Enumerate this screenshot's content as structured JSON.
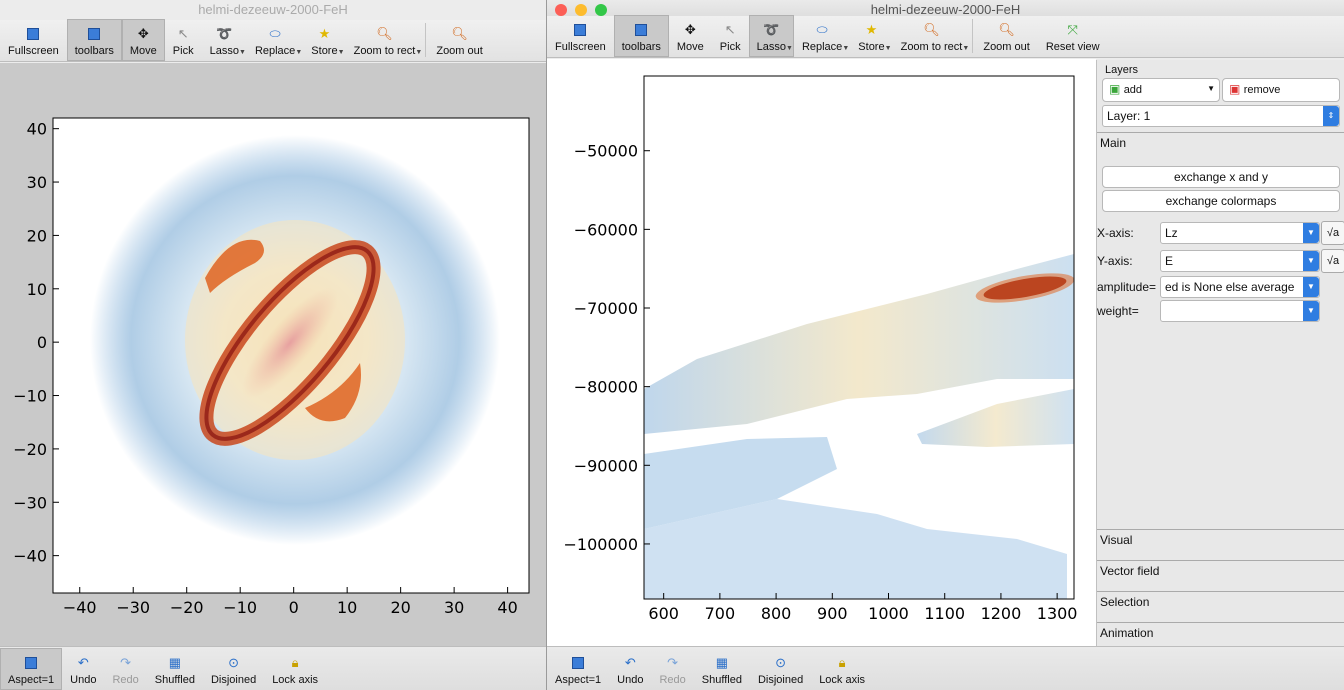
{
  "windows": [
    {
      "title": "helmi-dezeeuw-2000-FeH",
      "toolbar": [
        "Fullscreen",
        "toolbars",
        "Move",
        "Pick",
        "Lasso",
        "Replace",
        "Store",
        "Zoom to rect",
        "Zoom out"
      ],
      "bottom": [
        "Aspect=1",
        "Undo",
        "Redo",
        "Shuffled",
        "Disjoined",
        "Lock axis"
      ]
    },
    {
      "title": "helmi-dezeeuw-2000-FeH",
      "toolbar": [
        "Fullscreen",
        "toolbars",
        "Move",
        "Pick",
        "Lasso",
        "Replace",
        "Store",
        "Zoom to rect",
        "Zoom out",
        "Reset view"
      ],
      "bottom": [
        "Aspect=1",
        "Undo",
        "Redo",
        "Shuffled",
        "Disjoined",
        "Lock axis"
      ]
    }
  ],
  "chart_data": [
    {
      "type": "heatmap",
      "x_ticks": [
        -40,
        -30,
        -20,
        -10,
        0,
        10,
        20,
        30,
        40
      ],
      "y_ticks": [
        40,
        30,
        20,
        10,
        0,
        -10,
        -20,
        -30,
        -40
      ],
      "xlim": [
        -45,
        44
      ],
      "ylim": [
        -47,
        42
      ]
    },
    {
      "type": "heatmap",
      "x_ticks": [
        600,
        700,
        800,
        900,
        1000,
        1100,
        1200,
        1300
      ],
      "y_ticks": [
        -50000,
        -60000,
        -70000,
        -80000,
        -90000,
        -100000
      ],
      "xlim": [
        565,
        1330
      ],
      "ylim": [
        -107000,
        -40500
      ]
    }
  ],
  "panel": {
    "layers_title": "Layers",
    "add": "add",
    "remove": "remove",
    "layer_select": "Layer: 1",
    "tab_main": "Main",
    "exchange_xy": "exchange x and y",
    "exchange_cmaps": "exchange colormaps",
    "xaxis_label": "X-axis:",
    "xaxis_value": "Lz",
    "yaxis_label": "Y-axis:",
    "yaxis_value": "E",
    "amplitude_label": "amplitude=",
    "amplitude_value": "ed is None else average",
    "weight_label": "weight=",
    "weight_value": "",
    "sqrt_label": "√a",
    "tabs": [
      "Visual",
      "Vector field",
      "Selection",
      "Animation"
    ]
  }
}
